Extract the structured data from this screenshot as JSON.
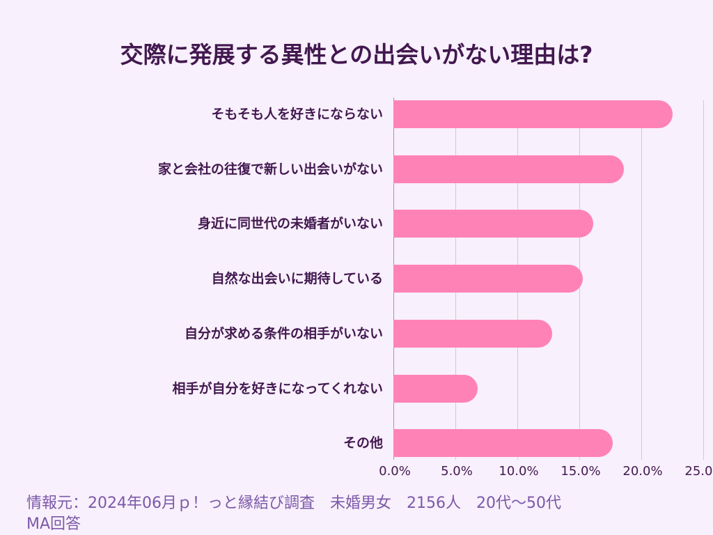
{
  "chart_data": {
    "type": "bar",
    "orientation": "horizontal",
    "title": "交際に発展する異性との出会いがない理由は?",
    "categories": [
      "そもそも人を好きにならない",
      "家と会社の往復で新しい出会いがない",
      "身近に同世代の未婚者がいない",
      "自然な出会いに期待している",
      "自分が求める条件の相手がいない",
      "相手が自分を好きになってくれない",
      "その他"
    ],
    "values": [
      22.5,
      18.6,
      16.1,
      15.3,
      12.8,
      6.8,
      17.7
    ],
    "xlabel": "",
    "ylabel": "",
    "xlim": [
      0,
      25
    ],
    "x_ticks": [
      "0.0%",
      "5.0%",
      "10.0%",
      "15.0%",
      "20.0%",
      "25.0%"
    ],
    "grid": true,
    "legend": null,
    "bar_color": "#ff82b6"
  },
  "title": "交際に発展する異性との出会いがない理由は?",
  "source_line1": "情報元：2024年06月ｐ！っと縁結び調査　未婚男女　2156人　20代〜50代",
  "source_line2": "MA回答",
  "colors": {
    "background": "#f8f0fc",
    "bar": "#ff82b6",
    "text": "#42184f",
    "source": "#7c58a8"
  }
}
